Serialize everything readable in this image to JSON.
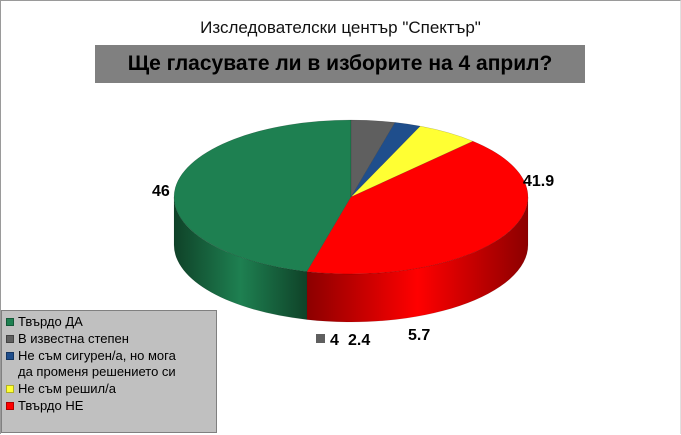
{
  "chart_data": {
    "type": "pie",
    "subtitle": "Изследователски център \"Спектър\"",
    "title": "Ще гласувате ли в изборите на 4 април?",
    "slices": [
      {
        "label": "Твърдо ДА",
        "value": 46,
        "value_label": "46",
        "color": "#1e8051",
        "dark": "#0f4228"
      },
      {
        "label": "В известна степен",
        "value": 4,
        "value_label": "4",
        "color": "#5f5f5f",
        "dark": "#303030"
      },
      {
        "label": "Не съм сигурен/а, но мога да променя решението си",
        "value": 2.4,
        "value_label": "2.4",
        "color": "#1f4e8c",
        "dark": "#0f2746"
      },
      {
        "label": "Не съм решил/а",
        "value": 5.7,
        "value_label": "5.7",
        "color": "#ffff33",
        "dark": "#9f9f10"
      },
      {
        "label": "Твърдо НЕ",
        "value": 41.9,
        "value_label": "41.9",
        "color": "#ff0000",
        "dark": "#8c0000"
      }
    ],
    "legend_placement": "bottom-left"
  },
  "legend": {
    "items": [
      {
        "text": "Твърдо ДА",
        "color": "#1e8051"
      },
      {
        "text": "В известна степен",
        "color": "#5f5f5f"
      },
      {
        "text": "Не съм сигурен/а, но мога\nда променя решението си",
        "color": "#1f4e8c"
      },
      {
        "text": "Не съм решил/а",
        "color": "#ffff33"
      },
      {
        "text": "Твърдо НЕ",
        "color": "#ff0000"
      }
    ]
  }
}
